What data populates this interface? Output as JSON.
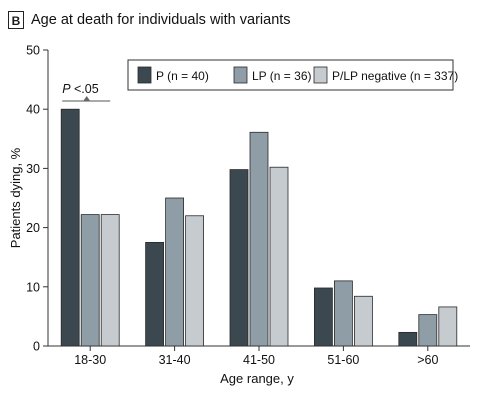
{
  "panel": {
    "letter": "B",
    "title": "Age at death for individuals with variants"
  },
  "chart_data": {
    "type": "bar",
    "title": "Age at death for individuals with variants",
    "xlabel": "Age range, y",
    "ylabel": "Patients dying, %",
    "ylim": [
      0,
      50
    ],
    "yticks": [
      0,
      10,
      20,
      30,
      40,
      50
    ],
    "grid": false,
    "legend_position": "top-right",
    "categories": [
      "18-30",
      "31-40",
      "41-50",
      "51-60",
      ">60"
    ],
    "series": [
      {
        "name": "P (n = 40)",
        "color": "#3b4850",
        "values": [
          40,
          17.5,
          29.8,
          9.8,
          2.3
        ]
      },
      {
        "name": "LP (n = 36)",
        "color": "#8f9da6",
        "values": [
          22.2,
          25,
          36.1,
          11,
          5.3
        ]
      },
      {
        "name": "P/LP negative (n = 337)",
        "color": "#c5cbcf",
        "values": [
          22.2,
          22,
          30.2,
          8.4,
          6.6
        ]
      }
    ],
    "annotation": {
      "label": "P",
      "text": "<.05",
      "category": "18-30"
    }
  }
}
